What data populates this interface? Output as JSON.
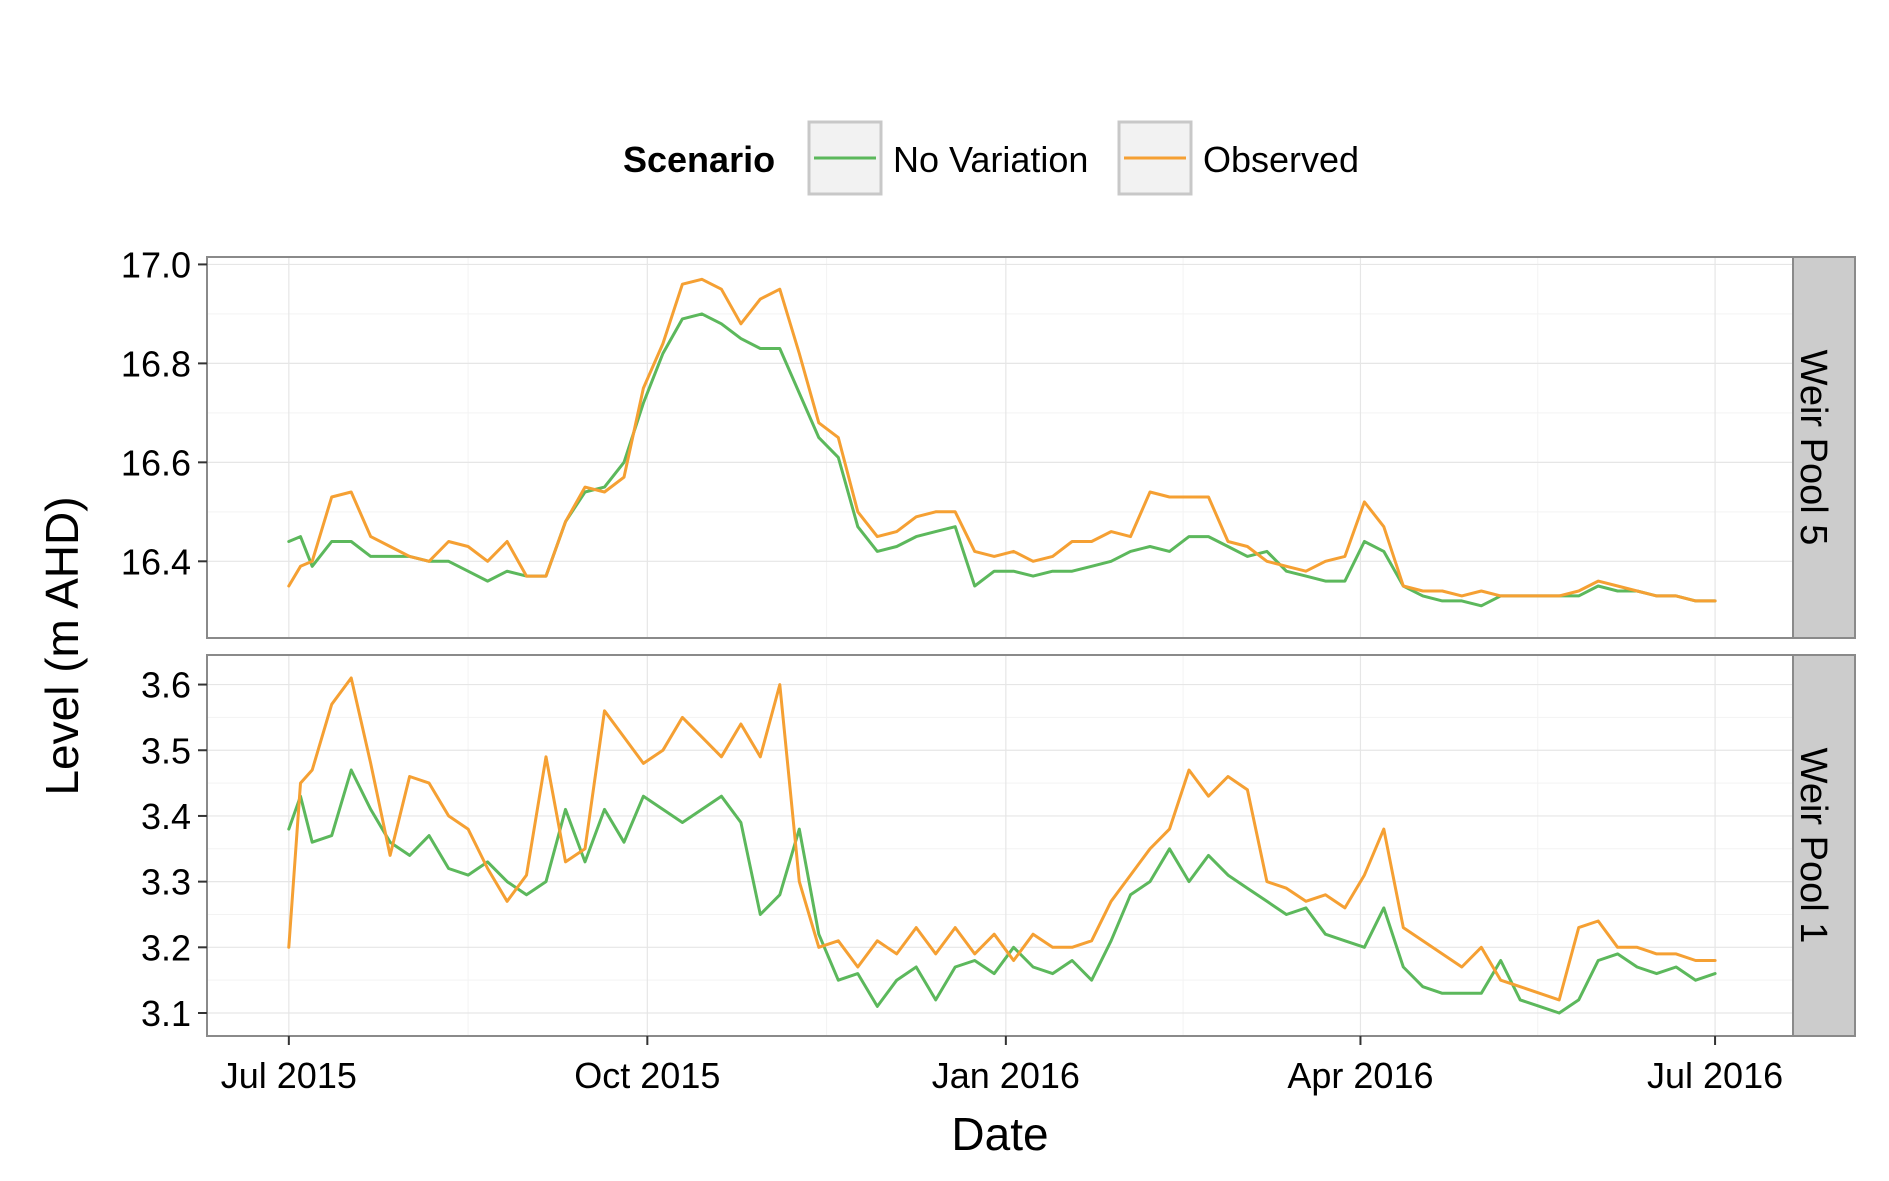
{
  "chart_data": {
    "type": "line",
    "legend": {
      "title": "Scenario",
      "position": "top",
      "entries": [
        {
          "label": "No Variation",
          "color": "#5cb85c"
        },
        {
          "label": "Observed",
          "color": "#f5a033"
        }
      ]
    },
    "xlabel": "Date",
    "ylabel": "Level (m AHD)",
    "x_ticks": [
      "Jul 2015",
      "Oct 2015",
      "Jan 2016",
      "Apr 2016",
      "Jul 2016"
    ],
    "x_tick_dates": [
      "2015-07-01",
      "2015-10-01",
      "2016-01-01",
      "2016-04-01",
      "2016-07-01"
    ],
    "xlim": [
      "2015-06-10",
      "2016-07-21"
    ],
    "grid": true,
    "panels": [
      {
        "strip": "Weir Pool 5",
        "ylim": [
          16.245,
          17.015
        ],
        "y_ticks": [
          "16.4",
          "16.6",
          "16.8",
          "17.0"
        ],
        "y_tick_values": [
          16.4,
          16.6,
          16.8,
          17.0
        ],
        "series": [
          {
            "name": "No Variation",
            "x": [
              "2015-07-01",
              "2015-07-04",
              "2015-07-07",
              "2015-07-12",
              "2015-07-17",
              "2015-07-22",
              "2015-07-27",
              "2015-08-01",
              "2015-08-06",
              "2015-08-11",
              "2015-08-16",
              "2015-08-21",
              "2015-08-26",
              "2015-08-31",
              "2015-09-05",
              "2015-09-10",
              "2015-09-15",
              "2015-09-20",
              "2015-09-25",
              "2015-09-30",
              "2015-10-05",
              "2015-10-10",
              "2015-10-15",
              "2015-10-20",
              "2015-10-25",
              "2015-10-30",
              "2015-11-04",
              "2015-11-09",
              "2015-11-14",
              "2015-11-19",
              "2015-11-24",
              "2015-11-29",
              "2015-12-04",
              "2015-12-09",
              "2015-12-14",
              "2015-12-19",
              "2015-12-24",
              "2015-12-29",
              "2016-01-03",
              "2016-01-08",
              "2016-01-13",
              "2016-01-18",
              "2016-01-23",
              "2016-01-28",
              "2016-02-02",
              "2016-02-07",
              "2016-02-12",
              "2016-02-17",
              "2016-02-22",
              "2016-02-27",
              "2016-03-03",
              "2016-03-08",
              "2016-03-13",
              "2016-03-18",
              "2016-03-23",
              "2016-03-28",
              "2016-04-02",
              "2016-04-07",
              "2016-04-12",
              "2016-04-17",
              "2016-04-22",
              "2016-04-27",
              "2016-05-02",
              "2016-05-07",
              "2016-05-12",
              "2016-05-17",
              "2016-05-22",
              "2016-05-27",
              "2016-06-01",
              "2016-06-06",
              "2016-06-11",
              "2016-06-16",
              "2016-06-21",
              "2016-06-26",
              "2016-07-01"
            ],
            "y": [
              16.44,
              16.45,
              16.39,
              16.44,
              16.44,
              16.41,
              16.41,
              16.41,
              16.4,
              16.4,
              16.38,
              16.36,
              16.38,
              16.37,
              16.37,
              16.48,
              16.54,
              16.55,
              16.6,
              16.72,
              16.82,
              16.89,
              16.9,
              16.88,
              16.85,
              16.83,
              16.83,
              16.74,
              16.65,
              16.61,
              16.47,
              16.42,
              16.43,
              16.45,
              16.46,
              16.47,
              16.35,
              16.38,
              16.38,
              16.37,
              16.38,
              16.38,
              16.39,
              16.4,
              16.42,
              16.43,
              16.42,
              16.45,
              16.45,
              16.43,
              16.41,
              16.42,
              16.38,
              16.37,
              16.36,
              16.36,
              16.44,
              16.42,
              16.35,
              16.33,
              16.32,
              16.32,
              16.31,
              16.33,
              16.33,
              16.33,
              16.33,
              16.33,
              16.35,
              16.34,
              16.34,
              16.33,
              16.33,
              16.32,
              16.32
            ]
          },
          {
            "name": "Observed",
            "x": [
              "2015-07-01",
              "2015-07-04",
              "2015-07-07",
              "2015-07-12",
              "2015-07-17",
              "2015-07-22",
              "2015-07-27",
              "2015-08-01",
              "2015-08-06",
              "2015-08-11",
              "2015-08-16",
              "2015-08-21",
              "2015-08-26",
              "2015-08-31",
              "2015-09-05",
              "2015-09-10",
              "2015-09-15",
              "2015-09-20",
              "2015-09-25",
              "2015-09-30",
              "2015-10-05",
              "2015-10-10",
              "2015-10-15",
              "2015-10-20",
              "2015-10-25",
              "2015-10-30",
              "2015-11-04",
              "2015-11-09",
              "2015-11-14",
              "2015-11-19",
              "2015-11-24",
              "2015-11-29",
              "2015-12-04",
              "2015-12-09",
              "2015-12-14",
              "2015-12-19",
              "2015-12-24",
              "2015-12-29",
              "2016-01-03",
              "2016-01-08",
              "2016-01-13",
              "2016-01-18",
              "2016-01-23",
              "2016-01-28",
              "2016-02-02",
              "2016-02-07",
              "2016-02-12",
              "2016-02-17",
              "2016-02-22",
              "2016-02-27",
              "2016-03-03",
              "2016-03-08",
              "2016-03-13",
              "2016-03-18",
              "2016-03-23",
              "2016-03-28",
              "2016-04-02",
              "2016-04-07",
              "2016-04-12",
              "2016-04-17",
              "2016-04-22",
              "2016-04-27",
              "2016-05-02",
              "2016-05-07",
              "2016-05-12",
              "2016-05-17",
              "2016-05-22",
              "2016-05-27",
              "2016-06-01",
              "2016-06-06",
              "2016-06-11",
              "2016-06-16",
              "2016-06-21",
              "2016-06-26",
              "2016-07-01"
            ],
            "y": [
              16.35,
              16.39,
              16.4,
              16.53,
              16.54,
              16.45,
              16.43,
              16.41,
              16.4,
              16.44,
              16.43,
              16.4,
              16.44,
              16.37,
              16.37,
              16.48,
              16.55,
              16.54,
              16.57,
              16.75,
              16.84,
              16.96,
              16.97,
              16.95,
              16.88,
              16.93,
              16.95,
              16.82,
              16.68,
              16.65,
              16.5,
              16.45,
              16.46,
              16.49,
              16.5,
              16.5,
              16.42,
              16.41,
              16.42,
              16.4,
              16.41,
              16.44,
              16.44,
              16.46,
              16.45,
              16.54,
              16.53,
              16.53,
              16.53,
              16.44,
              16.43,
              16.4,
              16.39,
              16.38,
              16.4,
              16.41,
              16.52,
              16.47,
              16.35,
              16.34,
              16.34,
              16.33,
              16.34,
              16.33,
              16.33,
              16.33,
              16.33,
              16.34,
              16.36,
              16.35,
              16.34,
              16.33,
              16.33,
              16.32,
              16.32
            ]
          }
        ]
      },
      {
        "strip": "Weir Pool 1",
        "ylim": [
          3.065,
          3.645
        ],
        "y_ticks": [
          "3.1",
          "3.2",
          "3.3",
          "3.4",
          "3.5",
          "3.6"
        ],
        "y_tick_values": [
          3.1,
          3.2,
          3.3,
          3.4,
          3.5,
          3.6
        ],
        "series": [
          {
            "name": "No Variation",
            "x": [
              "2015-07-01",
              "2015-07-04",
              "2015-07-07",
              "2015-07-12",
              "2015-07-17",
              "2015-07-22",
              "2015-07-27",
              "2015-08-01",
              "2015-08-06",
              "2015-08-11",
              "2015-08-16",
              "2015-08-21",
              "2015-08-26",
              "2015-08-31",
              "2015-09-05",
              "2015-09-10",
              "2015-09-15",
              "2015-09-20",
              "2015-09-25",
              "2015-09-30",
              "2015-10-05",
              "2015-10-10",
              "2015-10-15",
              "2015-10-20",
              "2015-10-25",
              "2015-10-30",
              "2015-11-04",
              "2015-11-09",
              "2015-11-14",
              "2015-11-19",
              "2015-11-24",
              "2015-11-29",
              "2015-12-04",
              "2015-12-09",
              "2015-12-14",
              "2015-12-19",
              "2015-12-24",
              "2015-12-29",
              "2016-01-03",
              "2016-01-08",
              "2016-01-13",
              "2016-01-18",
              "2016-01-23",
              "2016-01-28",
              "2016-02-02",
              "2016-02-07",
              "2016-02-12",
              "2016-02-17",
              "2016-02-22",
              "2016-02-27",
              "2016-03-03",
              "2016-03-08",
              "2016-03-13",
              "2016-03-18",
              "2016-03-23",
              "2016-03-28",
              "2016-04-02",
              "2016-04-07",
              "2016-04-12",
              "2016-04-17",
              "2016-04-22",
              "2016-04-27",
              "2016-05-02",
              "2016-05-07",
              "2016-05-12",
              "2016-05-17",
              "2016-05-22",
              "2016-05-27",
              "2016-06-01",
              "2016-06-06",
              "2016-06-11",
              "2016-06-16",
              "2016-06-21",
              "2016-06-26",
              "2016-07-01"
            ],
            "y": [
              3.38,
              3.43,
              3.36,
              3.37,
              3.47,
              3.41,
              3.36,
              3.34,
              3.37,
              3.32,
              3.31,
              3.33,
              3.3,
              3.28,
              3.3,
              3.41,
              3.33,
              3.41,
              3.36,
              3.43,
              3.41,
              3.39,
              3.41,
              3.43,
              3.39,
              3.25,
              3.28,
              3.38,
              3.22,
              3.15,
              3.16,
              3.11,
              3.15,
              3.17,
              3.12,
              3.17,
              3.18,
              3.16,
              3.2,
              3.17,
              3.16,
              3.18,
              3.15,
              3.21,
              3.28,
              3.3,
              3.35,
              3.3,
              3.34,
              3.31,
              3.29,
              3.27,
              3.25,
              3.26,
              3.22,
              3.21,
              3.2,
              3.26,
              3.17,
              3.14,
              3.13,
              3.13,
              3.13,
              3.18,
              3.12,
              3.11,
              3.1,
              3.12,
              3.18,
              3.19,
              3.17,
              3.16,
              3.17,
              3.15,
              3.16
            ]
          },
          {
            "name": "Observed",
            "x": [
              "2015-07-01",
              "2015-07-04",
              "2015-07-07",
              "2015-07-12",
              "2015-07-17",
              "2015-07-22",
              "2015-07-27",
              "2015-08-01",
              "2015-08-06",
              "2015-08-11",
              "2015-08-16",
              "2015-08-21",
              "2015-08-26",
              "2015-08-31",
              "2015-09-05",
              "2015-09-10",
              "2015-09-15",
              "2015-09-20",
              "2015-09-25",
              "2015-09-30",
              "2015-10-05",
              "2015-10-10",
              "2015-10-15",
              "2015-10-20",
              "2015-10-25",
              "2015-10-30",
              "2015-11-04",
              "2015-11-09",
              "2015-11-14",
              "2015-11-19",
              "2015-11-24",
              "2015-11-29",
              "2015-12-04",
              "2015-12-09",
              "2015-12-14",
              "2015-12-19",
              "2015-12-24",
              "2015-12-29",
              "2016-01-03",
              "2016-01-08",
              "2016-01-13",
              "2016-01-18",
              "2016-01-23",
              "2016-01-28",
              "2016-02-02",
              "2016-02-07",
              "2016-02-12",
              "2016-02-17",
              "2016-02-22",
              "2016-02-27",
              "2016-03-03",
              "2016-03-08",
              "2016-03-13",
              "2016-03-18",
              "2016-03-23",
              "2016-03-28",
              "2016-04-02",
              "2016-04-07",
              "2016-04-12",
              "2016-04-17",
              "2016-04-22",
              "2016-04-27",
              "2016-05-02",
              "2016-05-07",
              "2016-05-12",
              "2016-05-17",
              "2016-05-22",
              "2016-05-27",
              "2016-06-01",
              "2016-06-06",
              "2016-06-11",
              "2016-06-16",
              "2016-06-21",
              "2016-06-26",
              "2016-07-01"
            ],
            "y": [
              3.2,
              3.45,
              3.47,
              3.57,
              3.61,
              3.48,
              3.34,
              3.46,
              3.45,
              3.4,
              3.38,
              3.32,
              3.27,
              3.31,
              3.49,
              3.33,
              3.35,
              3.56,
              3.52,
              3.48,
              3.5,
              3.55,
              3.52,
              3.49,
              3.54,
              3.49,
              3.6,
              3.3,
              3.2,
              3.21,
              3.17,
              3.21,
              3.19,
              3.23,
              3.19,
              3.23,
              3.19,
              3.22,
              3.18,
              3.22,
              3.2,
              3.2,
              3.21,
              3.27,
              3.31,
              3.35,
              3.38,
              3.47,
              3.43,
              3.46,
              3.44,
              3.3,
              3.29,
              3.27,
              3.28,
              3.26,
              3.31,
              3.38,
              3.23,
              3.21,
              3.19,
              3.17,
              3.2,
              3.15,
              3.14,
              3.13,
              3.12,
              3.23,
              3.24,
              3.2,
              3.2,
              3.19,
              3.19,
              3.18,
              3.18
            ]
          }
        ]
      }
    ]
  }
}
